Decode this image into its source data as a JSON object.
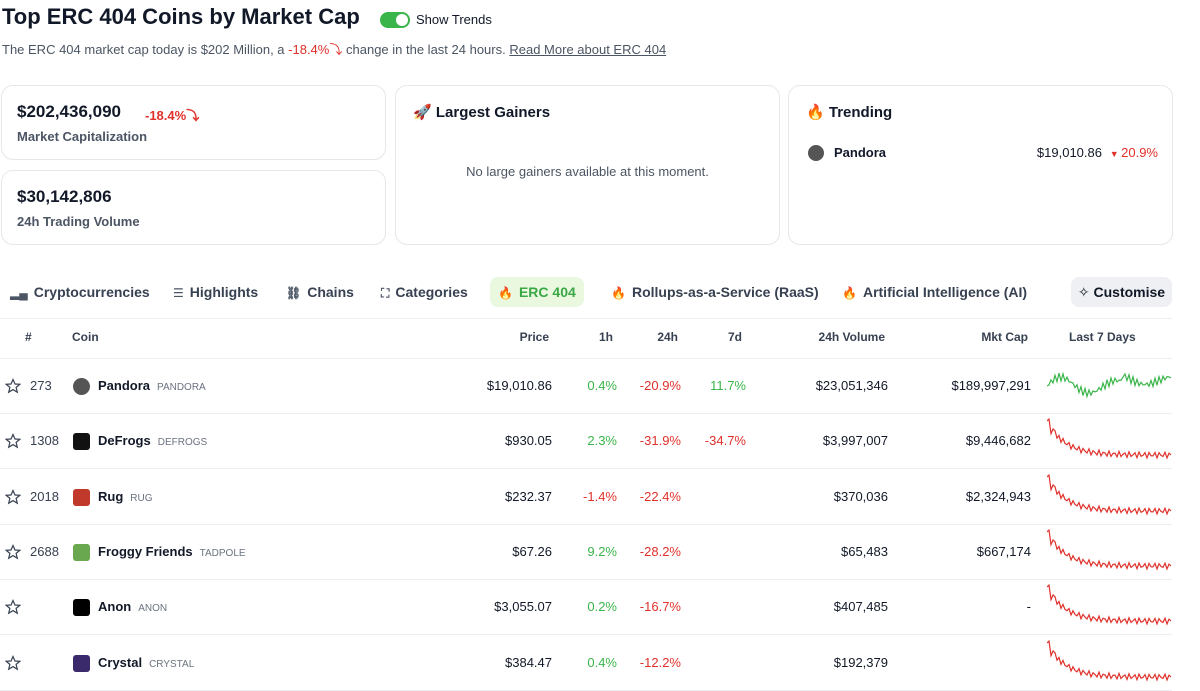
{
  "header": {
    "title": "Top ERC 404 Coins by Market Cap",
    "toggle_label": "Show Trends",
    "summary_prefix": "The ERC 404 market cap today is $202 Million, a",
    "summary_change": "-18.4%",
    "summary_suffix": "change in the last 24 hours.",
    "read_more": "Read More about ERC 404"
  },
  "stats": {
    "market_cap": {
      "value": "$202,436,090",
      "change": "-18.4%",
      "label": "Market Capitalization"
    },
    "volume": {
      "value": "$30,142,806",
      "label": "24h Trading Volume"
    }
  },
  "gainers": {
    "title": "Largest Gainers",
    "message": "No large gainers available at this moment."
  },
  "trending": {
    "title": "Trending",
    "items": [
      {
        "name": "Pandora",
        "price": "$19,010.86",
        "change": "20.9%"
      }
    ]
  },
  "tabs": [
    "Cryptocurrencies",
    "Highlights",
    "Chains",
    "Categories",
    "ERC 404",
    "Rollups-as-a-Service (RaaS)",
    "Artificial Intelligence (AI)"
  ],
  "active_tab": "ERC 404",
  "customise": "Customise",
  "table": {
    "columns": [
      "#",
      "Coin",
      "Price",
      "1h",
      "24h",
      "7d",
      "24h Volume",
      "Mkt Cap",
      "Last 7 Days"
    ],
    "rows": [
      {
        "rank": "273",
        "name": "Pandora",
        "symbol": "PANDORA",
        "price": "$19,010.86",
        "h1": "0.4%",
        "h24": "-20.9%",
        "d7": "11.7%",
        "volume": "$23,051,346",
        "mcap": "$189,997,291",
        "spark_color": "#3ab54a",
        "icon_color": "#555555"
      },
      {
        "rank": "1308",
        "name": "DeFrogs",
        "symbol": "DEFROGS",
        "price": "$930.05",
        "h1": "2.3%",
        "h24": "-31.9%",
        "d7": "-34.7%",
        "volume": "$3,997,007",
        "mcap": "$9,446,682",
        "spark_color": "#e0312b",
        "icon_color": "#111111"
      },
      {
        "rank": "2018",
        "name": "Rug",
        "symbol": "RUG",
        "price": "$232.37",
        "h1": "-1.4%",
        "h24": "-22.4%",
        "d7": null,
        "volume": "$370,036",
        "mcap": "$2,324,943",
        "spark_color": "#e0312b",
        "icon_color": "#c0392b"
      },
      {
        "rank": "2688",
        "name": "Froggy Friends",
        "symbol": "TADPOLE",
        "price": "$67.26",
        "h1": "9.2%",
        "h24": "-28.2%",
        "d7": null,
        "volume": "$65,483",
        "mcap": "$667,174",
        "spark_color": "#e0312b",
        "icon_color": "#6aa84f"
      },
      {
        "rank": null,
        "name": "Anon",
        "symbol": "ANON",
        "price": "$3,055.07",
        "h1": "0.2%",
        "h24": "-16.7%",
        "d7": null,
        "volume": "$407,485",
        "mcap": "-",
        "spark_color": "#e0312b",
        "icon_color": "#000000"
      },
      {
        "rank": null,
        "name": "Crystal",
        "symbol": "CRYSTAL",
        "price": "$384.47",
        "h1": "0.4%",
        "h24": "-12.2%",
        "d7": null,
        "volume": "$192,379",
        "mcap": null,
        "spark_color": "#e0312b",
        "icon_color": "#3b2a6b"
      }
    ]
  }
}
